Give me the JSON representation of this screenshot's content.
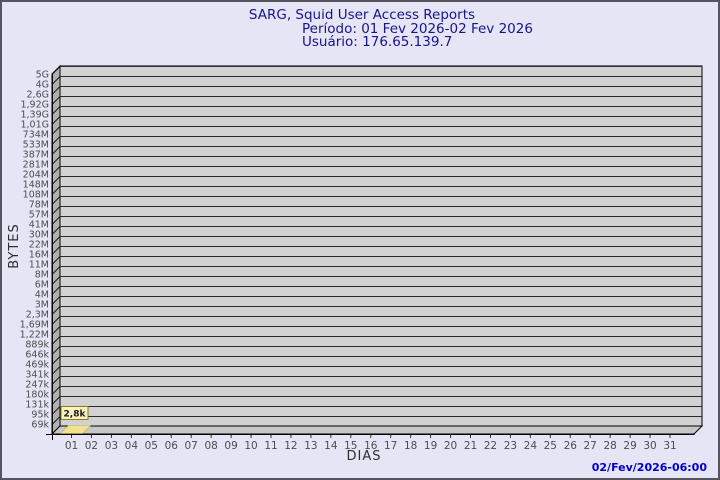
{
  "window": {
    "background": "#e5e5f6",
    "border_color": "#55555f"
  },
  "header": {
    "title": "SARG, Squid User Access Reports",
    "period_line": "Período: 01 Fev 2026-02 Fev 2026",
    "user_line": "Usuário: 176.65.139.7"
  },
  "footer": {
    "timestamp": "02/Fev/2026-06:00"
  },
  "chart_data": {
    "type": "bar",
    "title": "SARG, Squid User Access Reports",
    "xlabel": "DIAS",
    "ylabel": "BYTES",
    "categories": [
      "01",
      "02",
      "03",
      "04",
      "05",
      "06",
      "07",
      "08",
      "09",
      "10",
      "11",
      "12",
      "13",
      "14",
      "15",
      "16",
      "17",
      "18",
      "19",
      "20",
      "21",
      "22",
      "23",
      "24",
      "25",
      "26",
      "27",
      "28",
      "29",
      "30",
      "31"
    ],
    "values": [
      2800,
      0,
      0,
      0,
      0,
      0,
      0,
      0,
      0,
      0,
      0,
      0,
      0,
      0,
      0,
      0,
      0,
      0,
      0,
      0,
      0,
      0,
      0,
      0,
      0,
      0,
      0,
      0,
      0,
      0,
      0
    ],
    "annotations": [
      {
        "category": "01",
        "label": "2,8k"
      }
    ],
    "y_tick_labels": [
      "5G",
      "4G",
      "2,6G",
      "1,92G",
      "1,39G",
      "1,01G",
      "734M",
      "533M",
      "387M",
      "281M",
      "204M",
      "148M",
      "108M",
      "78M",
      "57M",
      "41M",
      "30M",
      "22M",
      "16M",
      "11M",
      "8M",
      "6M",
      "4M",
      "3M",
      "2,3M",
      "1,69M",
      "1,22M",
      "889k",
      "646k",
      "469k",
      "341k",
      "247k",
      "180k",
      "131k",
      "95k",
      "69k"
    ],
    "grid": "horizontal",
    "legend": "none",
    "colors": {
      "plot_bg": "#d2d2d2",
      "wall": "#b0b0b0",
      "floor": "#c7c7c7",
      "gridline": "#2b2b2b",
      "axis": "#000000",
      "bar": "#f2e190",
      "bar_edge": "#c4b261",
      "annotation_box": "#f8f2c2",
      "annotation_border": "#8a7a20",
      "tick_label": "#4d4d4d",
      "axis_title": "#2e2e2e"
    }
  }
}
